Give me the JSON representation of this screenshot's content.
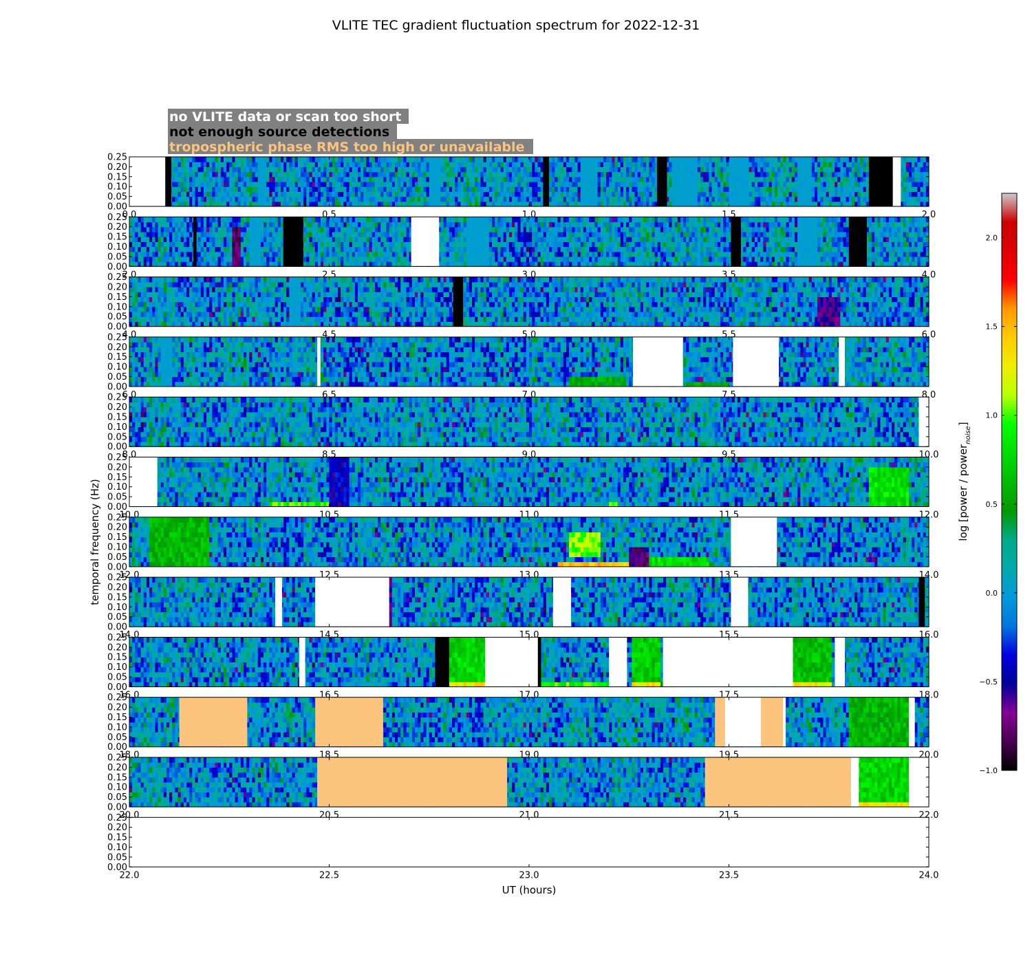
{
  "chart_data": {
    "type": "heatmap",
    "title": "VLITE TEC gradient fluctuation spectrum for 2022-12-31",
    "xlabel": "UT (hours)",
    "ylabel": "temporal frequency (Hz)",
    "colorbar": {
      "label_prefix": "log [power / power",
      "label_sub": "noise",
      "label_suffix": "]",
      "range": [
        -1.0,
        2.25
      ],
      "ticks": [
        -1.0,
        -0.5,
        0.0,
        0.5,
        1.0,
        1.5,
        2.0
      ],
      "tick_labels": [
        "−1.0",
        "−0.5",
        "0.0",
        "0.5",
        "1.0",
        "1.5",
        "2.0"
      ],
      "colormap": "nipy_spectral"
    },
    "legend": [
      {
        "text": "no VLITE data or scan too short",
        "color": "#ffffff",
        "status": "nodata"
      },
      {
        "text": "not enough source detections",
        "color": "#000000",
        "status": "nodet"
      },
      {
        "text": "tropospheric phase RMS too high or unavailable",
        "color": "#fcc47c",
        "status": "trop"
      }
    ],
    "legend_box_color": "#808080",
    "ylim": [
      0.0,
      0.25
    ],
    "ytick_labels": [
      "0.00",
      "0.05",
      "0.10",
      "0.15",
      "0.20",
      "0.25"
    ],
    "panels": [
      {
        "xlim": [
          0.0,
          2.0
        ],
        "xtick_labels": [
          "0.0",
          "0.5",
          "1.0",
          "1.5",
          "2.0"
        ],
        "segments": [
          [
            "nodata",
            0,
            0.09
          ],
          [
            "nodet",
            0.09,
            0.105
          ],
          [
            "nodet",
            1.035,
            1.05
          ],
          [
            "nodet",
            1.32,
            1.345
          ],
          [
            "nodet",
            1.85,
            1.91
          ],
          [
            "nodata",
            1.91,
            1.93
          ]
        ],
        "streaks": [
          [
            0.32,
            0.34
          ],
          [
            0.75,
            0.78
          ],
          [
            1.13,
            1.17
          ],
          [
            1.36,
            1.42
          ],
          [
            1.5,
            1.55
          ],
          [
            1.67,
            1.71
          ]
        ],
        "features": []
      },
      {
        "xlim": [
          2.0,
          4.0
        ],
        "xtick_labels": [
          "2.0",
          "2.5",
          "3.0",
          "3.5",
          "4.0"
        ],
        "segments": [
          [
            "nodet",
            2.16,
            2.168
          ],
          [
            "nodet",
            2.385,
            2.435
          ],
          [
            "nodata",
            2.705,
            2.775
          ],
          [
            "nodet",
            3.505,
            3.53
          ],
          [
            "nodet",
            3.8,
            3.845
          ]
        ],
        "streaks": [
          [
            2.3,
            2.33
          ],
          [
            2.84,
            2.9
          ],
          [
            3.67,
            3.72
          ]
        ],
        "features": [
          [
            2.26,
            2.28,
            0,
            0.2,
            -0.75
          ]
        ]
      },
      {
        "xlim": [
          4.0,
          6.0
        ],
        "xtick_labels": [
          "4.0",
          "4.5",
          "5.0",
          "5.5",
          "6.0"
        ],
        "segments": [
          [
            "nodet",
            4.81,
            4.835
          ]
        ],
        "streaks": [
          [
            4.4,
            4.43
          ]
        ],
        "features": [
          [
            5.72,
            5.78,
            0,
            0.15,
            -0.6
          ]
        ]
      },
      {
        "xlim": [
          6.0,
          8.0
        ],
        "xtick_labels": [
          "6.0",
          "6.5",
          "7.0",
          "7.5",
          "8.0"
        ],
        "segments": [
          [
            "nodata",
            6.47,
            6.478
          ],
          [
            "nodata",
            7.26,
            7.385
          ],
          [
            "nodata",
            7.51,
            7.625
          ],
          [
            "nodata",
            7.775,
            7.79
          ]
        ],
        "streaks": [
          [
            6.08,
            6.11
          ]
        ],
        "features": [
          [
            7.1,
            7.24,
            0,
            0.04,
            0.55
          ],
          [
            7.39,
            7.5,
            0,
            0.03,
            0.5
          ]
        ]
      },
      {
        "xlim": [
          8.0,
          10.0
        ],
        "xtick_labels": [
          "8.0",
          "8.5",
          "9.0",
          "9.5",
          "10.0"
        ],
        "segments": [
          [
            "nodata",
            9.975,
            10.0
          ]
        ],
        "streaks": [],
        "features": []
      },
      {
        "xlim": [
          10.0,
          12.0
        ],
        "xtick_labels": [
          "10.0",
          "10.5",
          "11.0",
          "11.5",
          "12.0"
        ],
        "segments": [
          [
            "nodata",
            10.0,
            10.07
          ]
        ],
        "streaks": [],
        "features": [
          [
            10.5,
            10.55,
            0,
            0.25,
            -0.45
          ],
          [
            10.35,
            10.5,
            0,
            0.035,
            0.95
          ],
          [
            11.2,
            11.22,
            0,
            0.03,
            1.1
          ],
          [
            11.85,
            11.95,
            0,
            0.2,
            0.8
          ]
        ]
      },
      {
        "xlim": [
          12.0,
          14.0
        ],
        "xtick_labels": [
          "12.0",
          "12.5",
          "13.0",
          "13.5",
          "14.0"
        ],
        "segments": [
          [
            "nodata",
            13.505,
            13.62
          ]
        ],
        "streaks": [],
        "features": [
          [
            13.07,
            13.25,
            0,
            0.035,
            1.45
          ],
          [
            13.1,
            13.18,
            0.05,
            0.18,
            1.05
          ],
          [
            12.05,
            12.2,
            0,
            0.25,
            0.6
          ],
          [
            13.25,
            13.3,
            0,
            0.1,
            -0.7
          ],
          [
            13.3,
            13.45,
            0,
            0.06,
            0.8
          ]
        ]
      },
      {
        "xlim": [
          14.0,
          16.0
        ],
        "xtick_labels": [
          "14.0",
          "14.5",
          "15.0",
          "15.5",
          "16.0"
        ],
        "segments": [
          [
            "nodata",
            14.365,
            14.382
          ],
          [
            "nodata",
            14.465,
            14.65
          ],
          [
            "nodata",
            15.06,
            15.105
          ],
          [
            "nodata",
            15.505,
            15.548
          ],
          [
            "nodet",
            15.975,
            15.99
          ]
        ],
        "streaks": [],
        "features": [
          [
            14.65,
            14.66,
            0,
            0.25,
            -0.6
          ]
        ]
      },
      {
        "xlim": [
          16.0,
          18.0
        ],
        "xtick_labels": [
          "16.0",
          "16.5",
          "17.0",
          "17.5",
          "18.0"
        ],
        "segments": [
          [
            "nodata",
            16.425,
            16.44
          ],
          [
            "nodet",
            16.765,
            16.8
          ],
          [
            "nodata",
            16.89,
            17.025
          ],
          [
            "nodet",
            17.022,
            17.03
          ],
          [
            "nodata",
            17.2,
            17.245
          ],
          [
            "nodata",
            17.335,
            17.66
          ],
          [
            "nodata",
            17.765,
            17.79
          ]
        ],
        "streaks": [],
        "features": [
          [
            16.8,
            16.89,
            0,
            0.25,
            0.75
          ],
          [
            16.8,
            16.89,
            0,
            0.025,
            1.3
          ],
          [
            17.03,
            17.2,
            0,
            0.025,
            0.95
          ],
          [
            17.26,
            17.33,
            0,
            0.25,
            0.7
          ],
          [
            17.26,
            17.33,
            0,
            0.035,
            1.3
          ],
          [
            17.66,
            17.76,
            0,
            0.25,
            0.65
          ],
          [
            17.66,
            17.76,
            0,
            0.02,
            1.3
          ]
        ]
      },
      {
        "xlim": [
          18.0,
          20.0
        ],
        "xtick_labels": [
          "18.0",
          "18.5",
          "19.0",
          "19.5",
          "20.0"
        ],
        "segments": [
          [
            "trop",
            18.125,
            18.295
          ],
          [
            "trop",
            18.465,
            18.635
          ],
          [
            "trop",
            19.465,
            19.49
          ],
          [
            "nodata",
            19.49,
            19.58
          ],
          [
            "trop",
            19.58,
            19.635
          ],
          [
            "nodata",
            19.635,
            19.642
          ],
          [
            "nodata",
            19.95,
            19.965
          ]
        ],
        "streaks": [],
        "features": [
          [
            19.8,
            19.95,
            0,
            0.25,
            0.6
          ]
        ]
      },
      {
        "xlim": [
          20.0,
          22.0
        ],
        "xtick_labels": [
          "20.0",
          "20.5",
          "21.0",
          "21.5",
          "22.0"
        ],
        "segments": [
          [
            "trop",
            20.47,
            20.945
          ],
          [
            "trop",
            21.44,
            21.805
          ],
          [
            "nodata",
            21.805,
            21.825
          ],
          [
            "nodata",
            21.95,
            22.0
          ]
        ],
        "streaks": [],
        "features": [
          [
            21.825,
            21.95,
            0,
            0.25,
            0.75
          ],
          [
            21.825,
            21.95,
            0,
            0.03,
            1.3
          ]
        ]
      },
      {
        "xlim": [
          22.0,
          24.0
        ],
        "xtick_labels": [
          "22.0",
          "22.5",
          "23.0",
          "23.5",
          "24.0"
        ],
        "segments": [
          [
            "nodata",
            22.0,
            24.0
          ]
        ],
        "streaks": [],
        "features": []
      }
    ]
  }
}
